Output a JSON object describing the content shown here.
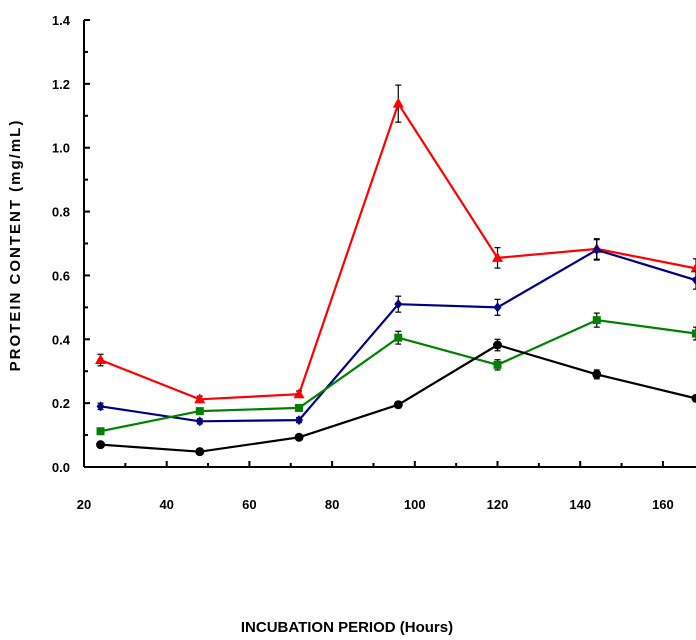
{
  "chart_data": {
    "type": "line",
    "title": "",
    "xlabel": "INCUBATION PERIOD (Hours)",
    "ylabel": "PROTEIN CONTENT (mg/mL)",
    "xlim": [
      20,
      168
    ],
    "ylim": [
      0,
      1.4
    ],
    "xticks": [
      20,
      40,
      60,
      80,
      100,
      120,
      140,
      160
    ],
    "yticks": [
      "0.0",
      "0.2",
      "0.4",
      "0.6",
      "0.8",
      "1.0",
      "1.2",
      "1.4"
    ],
    "grid": false,
    "legend": "none",
    "x": [
      24,
      48,
      72,
      96,
      120,
      144,
      168
    ],
    "series": [
      {
        "color": "#ff0000",
        "marker": "triangle",
        "values": [
          0.335,
          0.212,
          0.228,
          1.138,
          0.655,
          0.683,
          0.622
        ],
        "errors": [
          0.018,
          0.01,
          0.01,
          0.058,
          0.032,
          0.032,
          0.03
        ]
      },
      {
        "color": "#000080",
        "marker": "diamond",
        "values": [
          0.19,
          0.143,
          0.147,
          0.51,
          0.5,
          0.68,
          0.585
        ],
        "errors": [
          0.01,
          0.008,
          0.008,
          0.025,
          0.025,
          0.032,
          0.028
        ]
      },
      {
        "color": "#008000",
        "marker": "square",
        "values": [
          0.112,
          0.175,
          0.185,
          0.405,
          0.32,
          0.46,
          0.418
        ],
        "errors": [
          0.008,
          0.008,
          0.008,
          0.02,
          0.016,
          0.022,
          0.02
        ]
      },
      {
        "color": "#000000",
        "marker": "circle",
        "values": [
          0.07,
          0.048,
          0.093,
          0.195,
          0.382,
          0.29,
          0.215
        ],
        "errors": [
          0.006,
          0.005,
          0.006,
          0.01,
          0.018,
          0.014,
          0.01
        ]
      }
    ]
  }
}
